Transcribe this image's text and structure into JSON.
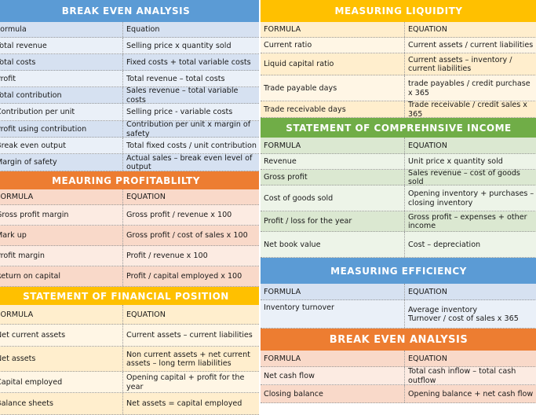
{
  "left": {
    "break_even": {
      "title": "BREAK EVEN ANALYSIS",
      "rows": [
        [
          "Formula",
          "Equation"
        ],
        [
          "Total revenue",
          "Selling price x quantity sold"
        ],
        [
          "Total costs",
          "Fixed costs + total variable costs"
        ],
        [
          "Profit",
          "Total revenue – total costs"
        ],
        [
          "Total contribution",
          "Sales revenue – total variable costs"
        ],
        [
          "Contribution per unit",
          "Selling price - variable costs"
        ],
        [
          "Profit using contribution",
          "Contribution per unit x margin of safety"
        ],
        [
          "Break even output",
          "Total fixed costs / unit contribution"
        ],
        [
          "Margin of safety",
          "Actual sales – break even level of output"
        ]
      ]
    },
    "profitability": {
      "title": "MEAURING PROFITABLILTY",
      "rows": [
        [
          "FORMULA",
          "EQUATION"
        ],
        [
          "Gross profit margin",
          "Gross profit / revenue x 100"
        ],
        [
          "Mark up",
          "Gross profit / cost of sales x 100"
        ],
        [
          "Profit margin",
          "Profit / revenue x 100"
        ],
        [
          "Return on capital",
          "Profit / capital employed x 100"
        ]
      ]
    },
    "financial_position": {
      "title": "STATEMENT OF FINANCIAL POSITION",
      "rows": [
        [
          "FORMULA",
          "EQUATION"
        ],
        [
          "Net current assets",
          "Current assets – current liabilities"
        ],
        [
          "Net assets",
          "Non current assets + net current assets – long term liabilities"
        ],
        [
          "Capital employed",
          "Opening capital + profit for the year"
        ],
        [
          "Balance sheets",
          "Net assets = capital employed"
        ]
      ]
    }
  },
  "right": {
    "liquidity": {
      "title": "MEASURING LIQUIDITY",
      "rows": [
        [
          "FORMULA",
          "EQUATION"
        ],
        [
          "Current ratio",
          "Current assets / current liabilities"
        ],
        [
          "Liquid capital ratio",
          "Current assets – inventory / current liabilities"
        ],
        [
          "Trade payable days",
          "trade payables / credit purchase  x 365"
        ],
        [
          "Trade receivable days",
          "Trade receivable / credit sales x 365"
        ]
      ]
    },
    "income": {
      "title": "STATEMENT OF COMPREHNSIVE INCOME",
      "rows": [
        [
          "FORMULA",
          "EQUATION"
        ],
        [
          "Revenue",
          "Unit price x quantity sold"
        ],
        [
          "Gross profit",
          "Sales revenue – cost of goods sold"
        ],
        [
          "Cost of goods sold",
          "Opening inventory + purchases – closing inventory"
        ],
        [
          "Profit / loss for the year",
          "Gross profit – expenses + other income"
        ],
        [
          "Net book value",
          "Cost – depreciation"
        ]
      ]
    },
    "efficiency": {
      "title": "MEASURING EFFICIENCY",
      "rows": [
        [
          "FORMULA",
          "EQUATION"
        ],
        [
          "Inventory turnover",
          "Average inventory\nTurnover / cost of sales x 365"
        ]
      ]
    },
    "break_even2": {
      "title": "BREAK EVEN ANALYSIS",
      "rows": [
        [
          "FORMULA",
          "EQUATION"
        ],
        [
          "Net cash flow",
          "Total cash inflow – total cash outflow"
        ],
        [
          "Closing balance",
          "Opening balance + net cash flow"
        ]
      ]
    }
  },
  "colors": {
    "blue": "#5b9bd5",
    "orange": "#ed7d31",
    "gold": "#ffc000",
    "green": "#70ad47"
  }
}
